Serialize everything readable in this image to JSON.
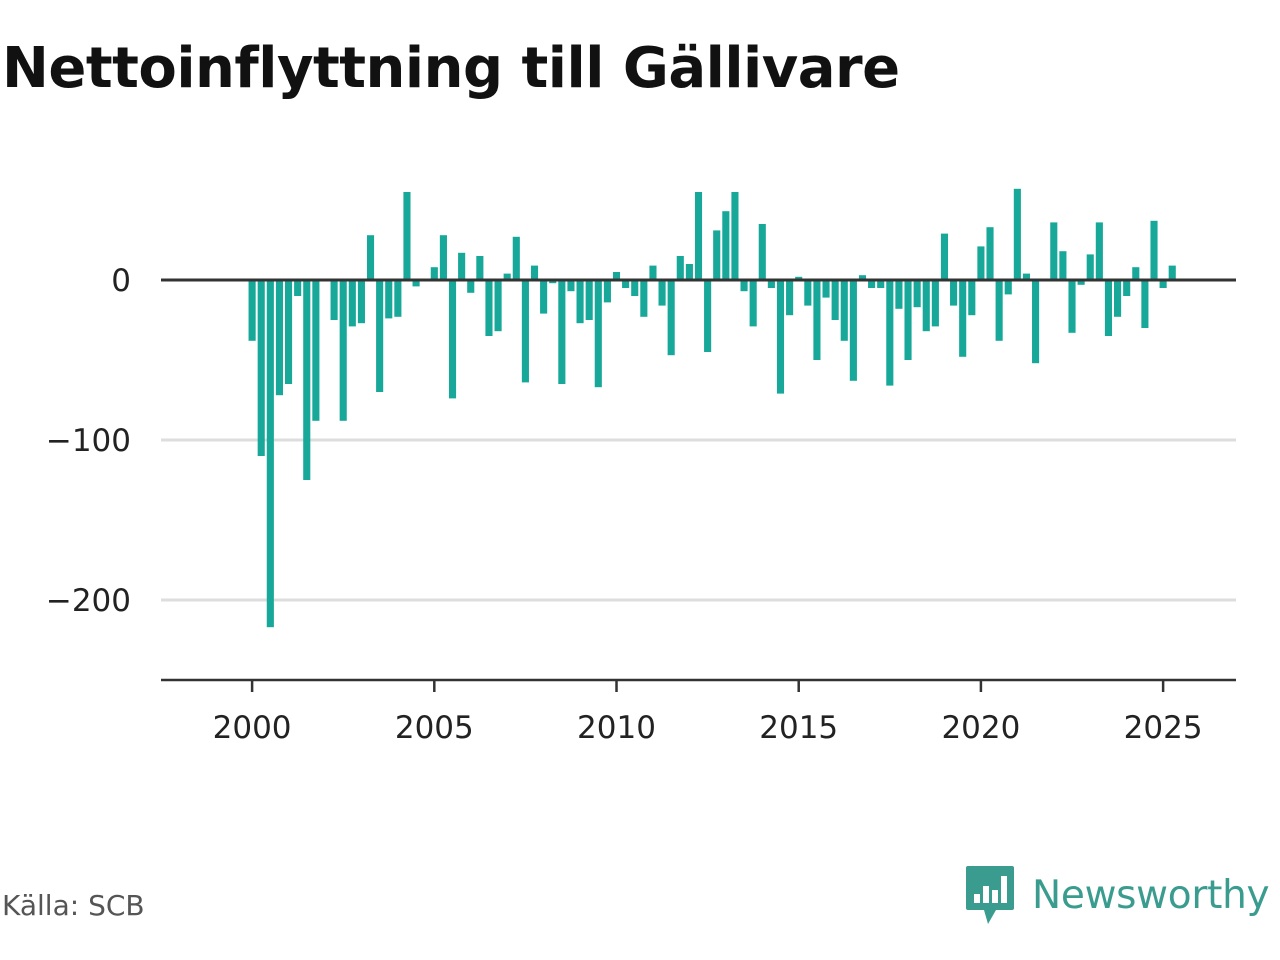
{
  "title": "Nettoinflyttning till Gällivare",
  "source": "Källa: SCB",
  "brand": {
    "name": "Newsworthy",
    "icon": "newsworthy-logo-icon",
    "color": "#3a9c8f"
  },
  "colors": {
    "bar": "#17a89a",
    "zero_line": "#333333",
    "grid": "#dddddd",
    "axis": "#333333"
  },
  "chart_data": {
    "type": "bar",
    "title": "Nettoinflyttning till Gällivare",
    "xlabel": "",
    "ylabel": "",
    "frequency": "quarterly",
    "start": "2000-Q1",
    "xlim": [
      1997.5,
      2027.0
    ],
    "ylim": [
      -250,
      75
    ],
    "grid": true,
    "x_ticks": [
      2000,
      2005,
      2010,
      2015,
      2020,
      2025
    ],
    "x_tick_labels": [
      "2000",
      "2005",
      "2010",
      "2015",
      "2020",
      "2025"
    ],
    "y_ticks": [
      0,
      -100,
      -200
    ],
    "y_tick_labels": [
      "0",
      "−100",
      "−200"
    ],
    "values": [
      -38,
      -110,
      -217,
      -72,
      -65,
      -10,
      -125,
      -88,
      0,
      -25,
      -88,
      -29,
      -27,
      28,
      -70,
      -24,
      -23,
      55,
      -4,
      0,
      8,
      28,
      -74,
      17,
      -8,
      15,
      -35,
      -32,
      4,
      27,
      -64,
      9,
      -21,
      -2,
      -65,
      -7,
      -27,
      -25,
      -67,
      -14,
      5,
      -5,
      -10,
      -23,
      9,
      -16,
      -47,
      15,
      10,
      55,
      -45,
      31,
      43,
      55,
      -7,
      -29,
      35,
      -5,
      -71,
      -22,
      2,
      -16,
      -50,
      -11,
      -25,
      -38,
      -63,
      3,
      -5,
      -5,
      -66,
      -18,
      -50,
      -17,
      -32,
      -29,
      29,
      -16,
      -48,
      -22,
      21,
      33,
      -38,
      -9,
      57,
      4,
      -52,
      0,
      36,
      18,
      -33,
      -3,
      16,
      36,
      -35,
      -23,
      -10,
      8,
      -30,
      37,
      -5,
      9
    ]
  }
}
